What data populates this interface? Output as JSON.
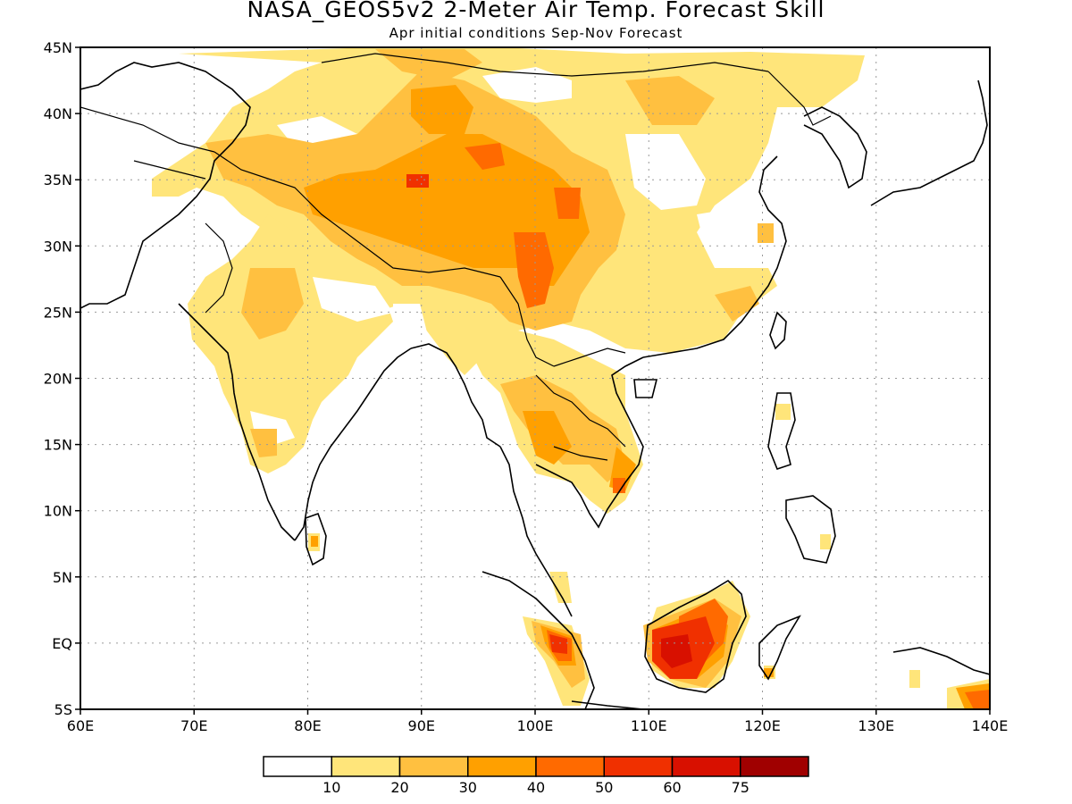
{
  "title": "NASA_GEOS5v2 2-Meter Air Temp. Forecast Skill",
  "subtitle": "Apr initial conditions  Sep-Nov Forecast",
  "map": {
    "lat_labels": [
      "45N",
      "40N",
      "35N",
      "30N",
      "25N",
      "20N",
      "15N",
      "10N",
      "5N",
      "EQ",
      "5S"
    ],
    "lon_labels": [
      "60E",
      "70E",
      "80E",
      "90E",
      "100E",
      "110E",
      "120E",
      "130E",
      "140E"
    ],
    "lon_range": [
      60,
      140
    ],
    "lat_range": [
      -5,
      45
    ],
    "grid": "dotted"
  },
  "legend": {
    "colors": [
      "#ffffff",
      "#ffe57a",
      "#ffc040",
      "#ffa000",
      "#ff6a00",
      "#f03000",
      "#d81000",
      "#a00000"
    ],
    "labels": [
      "10",
      "20",
      "30",
      "40",
      "50",
      "60",
      "75"
    ]
  },
  "palette": {
    "c1": "#ffe57a",
    "c2": "#ffc040",
    "c3": "#ffa000",
    "c4": "#ff6a00",
    "c5": "#f03000",
    "c6": "#d81000"
  }
}
